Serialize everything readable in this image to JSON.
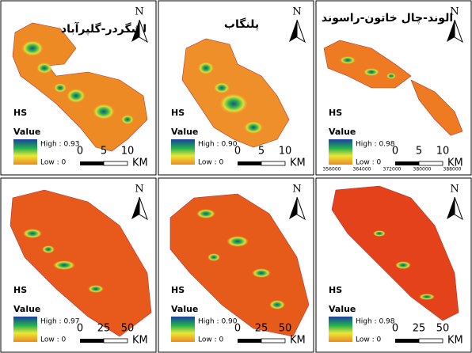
{
  "panels": [
    {
      "title": "لشگردر-گلپرآباد",
      "hs": "HS",
      "value": "Value",
      "high": "High : 0.93",
      "low": "Low : 0",
      "scale": [
        "0",
        "5",
        "10"
      ],
      "unit": "KM",
      "north": "N"
    },
    {
      "title": "پلنگاب",
      "hs": "HS",
      "value": "Value",
      "high": "High : 0.90",
      "low": "Low : 0",
      "scale": [
        "0",
        "5",
        "10"
      ],
      "unit": "KM",
      "north": "N"
    },
    {
      "title": "الوند-چال خاتون-راسوند",
      "hs": "HS",
      "value": "Value",
      "high": "High : 0.98",
      "low": "Low : 0",
      "scale": [
        "0",
        "5",
        "10"
      ],
      "unit": "KM",
      "north": "N",
      "x_labels": [
        "356000",
        "364000",
        "372000",
        "380000",
        "388000"
      ]
    },
    {
      "hs": "HS",
      "value": "Value",
      "high": "High : 0.97",
      "low": "Low : 0",
      "scale": [
        "0",
        "25",
        "50"
      ],
      "unit": "KM",
      "north": "N"
    },
    {
      "hs": "HS",
      "value": "Value",
      "high": "High : 0.90",
      "low": "Low : 0",
      "scale": [
        "0",
        "25",
        "50"
      ],
      "unit": "KM",
      "north": "N"
    },
    {
      "hs": "HS",
      "value": "Value",
      "high": "High : 0.98",
      "low": "Low : 0",
      "scale": [
        "0",
        "25",
        "50"
      ],
      "unit": "KM",
      "north": "N"
    }
  ]
}
